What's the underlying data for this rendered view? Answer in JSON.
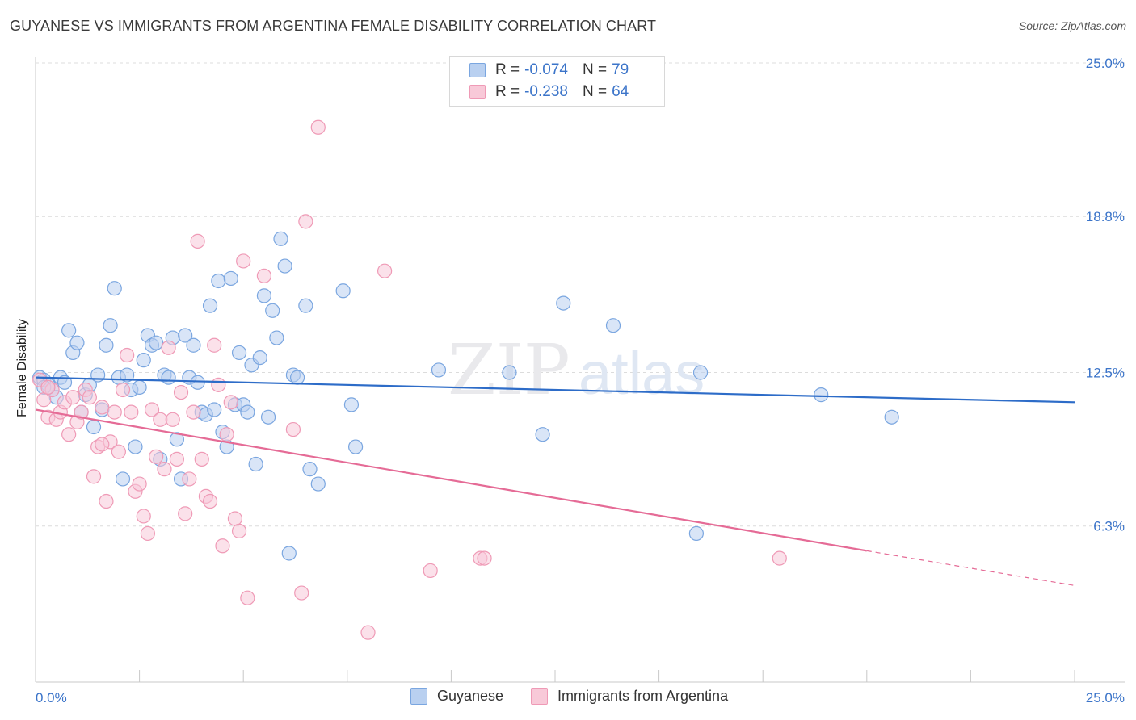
{
  "title": "GUYANESE VS IMMIGRANTS FROM ARGENTINA FEMALE DISABILITY CORRELATION CHART",
  "source": "Source: ZipAtlas.com",
  "watermark": {
    "bold": "ZIP",
    "light": "atlas"
  },
  "legend": {
    "rows": [
      {
        "r_label": "R = ",
        "r_value": "-0.074",
        "n_label": "N = ",
        "n_value": "79"
      },
      {
        "r_label": "R = ",
        "r_value": "-0.238",
        "n_label": "N = ",
        "n_value": "64"
      }
    ],
    "bottom": [
      "Guyanese",
      "Immigrants from Argentina"
    ]
  },
  "chart_data": {
    "type": "scatter",
    "ylabel": "Female Disability",
    "xlim": [
      0,
      25
    ],
    "ylim": [
      0,
      25
    ],
    "x_tick_labels": [
      "0.0%",
      "25.0%"
    ],
    "y_tick_values": [
      6.3,
      12.5,
      18.8,
      25.0
    ],
    "y_tick_labels": [
      "6.3%",
      "12.5%",
      "18.8%",
      "25.0%"
    ],
    "grid": true,
    "series": [
      {
        "name": "Guyanese",
        "color": "#7aa6e0",
        "fill": "#b9d0f0",
        "trend": {
          "x": [
            0,
            25
          ],
          "y": [
            12.3,
            11.3
          ],
          "color": "#2d6cc8"
        },
        "points": [
          [
            0.1,
            12.3
          ],
          [
            0.2,
            12.2
          ],
          [
            0.3,
            12.0
          ],
          [
            0.4,
            11.8
          ],
          [
            0.5,
            11.5
          ],
          [
            0.6,
            12.3
          ],
          [
            0.7,
            12.1
          ],
          [
            0.8,
            14.2
          ],
          [
            0.9,
            13.3
          ],
          [
            1.0,
            13.7
          ],
          [
            1.1,
            10.9
          ],
          [
            1.2,
            11.6
          ],
          [
            1.3,
            12.0
          ],
          [
            1.4,
            10.3
          ],
          [
            1.5,
            12.4
          ],
          [
            1.6,
            11.0
          ],
          [
            1.7,
            13.6
          ],
          [
            1.8,
            14.4
          ],
          [
            1.9,
            15.9
          ],
          [
            2.0,
            12.3
          ],
          [
            2.1,
            8.2
          ],
          [
            2.2,
            12.4
          ],
          [
            2.3,
            11.8
          ],
          [
            2.4,
            9.5
          ],
          [
            2.5,
            11.9
          ],
          [
            2.6,
            13.0
          ],
          [
            2.7,
            14.0
          ],
          [
            2.8,
            13.6
          ],
          [
            2.9,
            13.7
          ],
          [
            3.0,
            9.0
          ],
          [
            3.1,
            12.4
          ],
          [
            3.2,
            12.3
          ],
          [
            3.3,
            13.9
          ],
          [
            3.4,
            9.8
          ],
          [
            3.5,
            8.2
          ],
          [
            3.6,
            14.0
          ],
          [
            3.7,
            12.3
          ],
          [
            3.8,
            13.6
          ],
          [
            3.9,
            12.1
          ],
          [
            4.0,
            10.9
          ],
          [
            4.1,
            10.8
          ],
          [
            4.2,
            15.2
          ],
          [
            4.3,
            11.0
          ],
          [
            4.4,
            16.2
          ],
          [
            4.5,
            10.1
          ],
          [
            4.6,
            9.5
          ],
          [
            4.7,
            16.3
          ],
          [
            4.8,
            11.2
          ],
          [
            4.9,
            13.3
          ],
          [
            5.0,
            11.2
          ],
          [
            5.1,
            10.9
          ],
          [
            5.2,
            12.8
          ],
          [
            5.3,
            8.8
          ],
          [
            5.4,
            13.1
          ],
          [
            5.5,
            15.6
          ],
          [
            5.6,
            10.7
          ],
          [
            5.7,
            15.0
          ],
          [
            5.8,
            13.9
          ],
          [
            5.9,
            17.9
          ],
          [
            6.0,
            16.8
          ],
          [
            6.1,
            5.2
          ],
          [
            6.2,
            12.4
          ],
          [
            6.3,
            12.3
          ],
          [
            6.5,
            15.2
          ],
          [
            6.6,
            8.6
          ],
          [
            6.8,
            8.0
          ],
          [
            7.4,
            15.8
          ],
          [
            7.6,
            11.2
          ],
          [
            7.7,
            9.5
          ],
          [
            9.7,
            12.6
          ],
          [
            11.4,
            12.5
          ],
          [
            12.2,
            10.0
          ],
          [
            12.7,
            15.3
          ],
          [
            13.9,
            14.4
          ],
          [
            15.9,
            6.0
          ],
          [
            16.0,
            12.5
          ],
          [
            18.9,
            11.6
          ],
          [
            20.6,
            10.7
          ],
          [
            0.2,
            11.9
          ]
        ]
      },
      {
        "name": "Immigrants from Argentina",
        "color": "#ef9ab6",
        "fill": "#f8c9d8",
        "trend": {
          "x": [
            0,
            20
          ],
          "y": [
            11.0,
            5.3
          ],
          "color": "#e56b96"
        },
        "trend_dashed": {
          "x": [
            20,
            25
          ],
          "y": [
            5.3,
            3.9
          ]
        },
        "points": [
          [
            0.1,
            12.2
          ],
          [
            0.2,
            11.4
          ],
          [
            0.3,
            10.7
          ],
          [
            0.4,
            11.8
          ],
          [
            0.5,
            10.6
          ],
          [
            0.6,
            10.9
          ],
          [
            0.7,
            11.3
          ],
          [
            0.8,
            10.0
          ],
          [
            0.9,
            11.5
          ],
          [
            1.0,
            10.5
          ],
          [
            1.1,
            10.9
          ],
          [
            1.2,
            11.8
          ],
          [
            1.3,
            11.5
          ],
          [
            1.4,
            8.3
          ],
          [
            1.5,
            9.5
          ],
          [
            1.6,
            11.1
          ],
          [
            1.7,
            7.3
          ],
          [
            1.8,
            9.7
          ],
          [
            1.9,
            10.9
          ],
          [
            2.0,
            9.3
          ],
          [
            2.1,
            11.8
          ],
          [
            2.2,
            13.2
          ],
          [
            2.3,
            10.9
          ],
          [
            2.4,
            7.7
          ],
          [
            2.5,
            8.0
          ],
          [
            2.6,
            6.7
          ],
          [
            2.7,
            6.0
          ],
          [
            2.8,
            11.0
          ],
          [
            2.9,
            9.1
          ],
          [
            3.0,
            10.6
          ],
          [
            3.1,
            8.6
          ],
          [
            3.2,
            13.5
          ],
          [
            3.3,
            10.6
          ],
          [
            3.4,
            9.0
          ],
          [
            3.5,
            11.7
          ],
          [
            3.6,
            6.8
          ],
          [
            3.7,
            8.2
          ],
          [
            3.8,
            10.9
          ],
          [
            3.9,
            17.8
          ],
          [
            4.0,
            9.0
          ],
          [
            4.1,
            7.5
          ],
          [
            4.2,
            7.3
          ],
          [
            4.3,
            13.6
          ],
          [
            4.4,
            12.0
          ],
          [
            4.5,
            5.5
          ],
          [
            4.6,
            10.0
          ],
          [
            4.7,
            11.3
          ],
          [
            4.8,
            6.6
          ],
          [
            4.9,
            6.1
          ],
          [
            5.0,
            17.0
          ],
          [
            5.1,
            3.4
          ],
          [
            5.5,
            16.4
          ],
          [
            6.2,
            10.2
          ],
          [
            6.4,
            3.6
          ],
          [
            6.5,
            18.6
          ],
          [
            6.8,
            22.4
          ],
          [
            8.0,
            2.0
          ],
          [
            8.4,
            16.6
          ],
          [
            9.5,
            4.5
          ],
          [
            10.7,
            5.0
          ],
          [
            10.8,
            5.0
          ],
          [
            17.9,
            5.0
          ],
          [
            0.3,
            11.9
          ],
          [
            1.6,
            9.6
          ]
        ]
      }
    ]
  }
}
